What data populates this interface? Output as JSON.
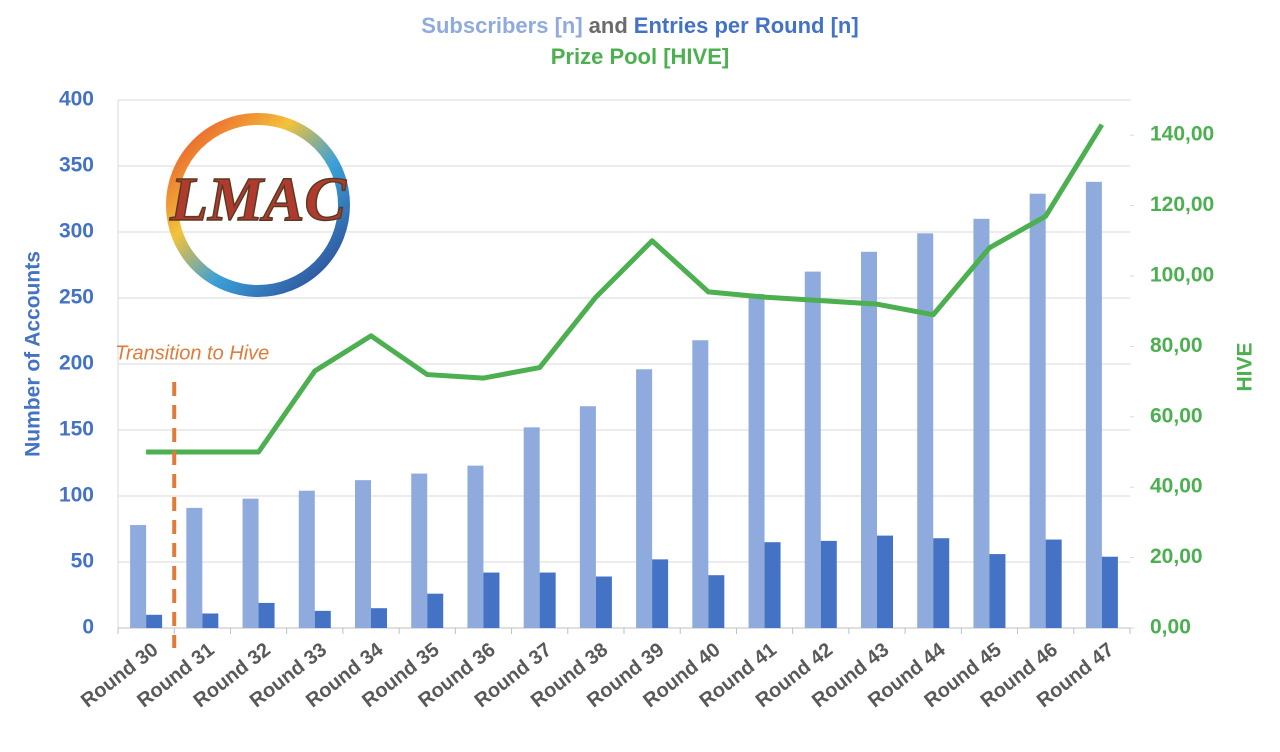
{
  "chart_data": {
    "type": "bar",
    "title_connector": "and",
    "logo": "LMAC",
    "annotation": "Transition to Hive",
    "ylabel": "Number of Accounts",
    "y2label": "HIVE",
    "categories": [
      "Round 30",
      "Round 31",
      "Round 32",
      "Round 33",
      "Round 34",
      "Round 35",
      "Round 36",
      "Round 37",
      "Round 38",
      "Round 39",
      "Round 40",
      "Round 41",
      "Round 42",
      "Round 43",
      "Round 44",
      "Round 45",
      "Round 46",
      "Round 47"
    ],
    "series": [
      {
        "name": "Subscribers [n]",
        "type": "bar",
        "color": "#8faadc",
        "values": [
          78,
          91,
          98,
          104,
          112,
          117,
          123,
          152,
          168,
          196,
          218,
          253,
          270,
          285,
          299,
          310,
          329,
          338
        ]
      },
      {
        "name": "Entries per Round [n]",
        "type": "bar",
        "color": "#4472c4",
        "values": [
          10,
          11,
          19,
          13,
          15,
          26,
          42,
          42,
          39,
          52,
          40,
          65,
          66,
          70,
          68,
          56,
          67,
          54
        ]
      },
      {
        "name": "Prize Pool [HIVE]",
        "type": "line",
        "axis": "y2",
        "color": "#4caf50",
        "values": [
          50,
          50,
          50,
          73,
          83,
          72,
          71,
          74,
          94,
          110,
          95.5,
          94,
          93,
          92,
          89,
          108,
          117,
          143
        ]
      }
    ],
    "ylim": [
      0,
      400
    ],
    "yticks": [
      0,
      50,
      100,
      150,
      200,
      250,
      300,
      350,
      400
    ],
    "y2lim": [
      0,
      150
    ],
    "y2ticks": [
      {
        "value": 0,
        "label": "0,00"
      },
      {
        "value": 20,
        "label": "20,00"
      },
      {
        "value": 40,
        "label": "40,00"
      },
      {
        "value": 60,
        "label": "60,00"
      },
      {
        "value": 80,
        "label": "80,00"
      },
      {
        "value": 100,
        "label": "100,00"
      },
      {
        "value": 120,
        "label": "120,00"
      },
      {
        "value": 140,
        "label": "140,00"
      }
    ],
    "grid": true
  }
}
